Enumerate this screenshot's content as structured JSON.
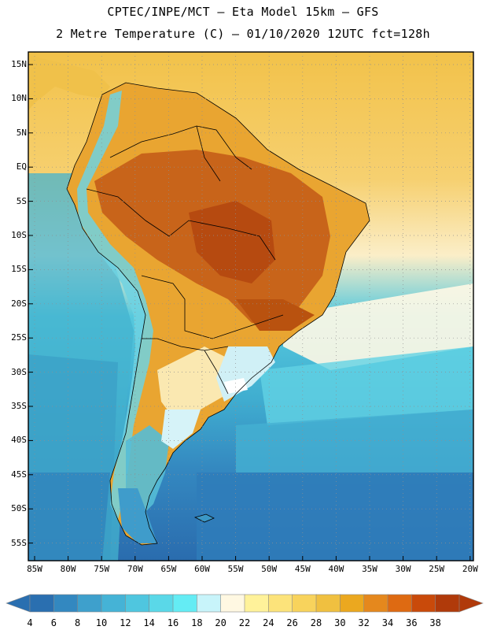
{
  "header": {
    "line1": "CPTEC/INPE/MCT –  Eta Model 15km – GFS",
    "line2": "2 Metre Temperature (C) – 01/10/2020 12UTC fct=128h"
  },
  "map": {
    "lat_labels": [
      "15N",
      "10N",
      "5N",
      "EQ",
      "5S",
      "10S",
      "15S",
      "20S",
      "25S",
      "30S",
      "35S",
      "40S",
      "45S",
      "50S",
      "55S"
    ],
    "lon_labels": [
      "85W",
      "80W",
      "75W",
      "70W",
      "65W",
      "60W",
      "55W",
      "50W",
      "45W",
      "40W",
      "35W",
      "30W",
      "25W",
      "20W"
    ],
    "ocean_color": "#45b3cc",
    "land_color": "#e0962a"
  },
  "colorbar": {
    "labels": [
      "4",
      "6",
      "8",
      "10",
      "12",
      "14",
      "16",
      "18",
      "20",
      "22",
      "24",
      "26",
      "28",
      "30",
      "32",
      "34",
      "36",
      "38"
    ],
    "colors": [
      "#2a6fb0",
      "#3388c0",
      "#3ea0cc",
      "#45b3d6",
      "#4fc6df",
      "#5ad8e8",
      "#64ecf4",
      "#c8f4fa",
      "#fff8e2",
      "#fff29a",
      "#fce37a",
      "#f8d35c",
      "#f0c040",
      "#eba81f",
      "#e5881d",
      "#de6a12",
      "#c94a0a",
      "#b03a0a"
    ]
  }
}
